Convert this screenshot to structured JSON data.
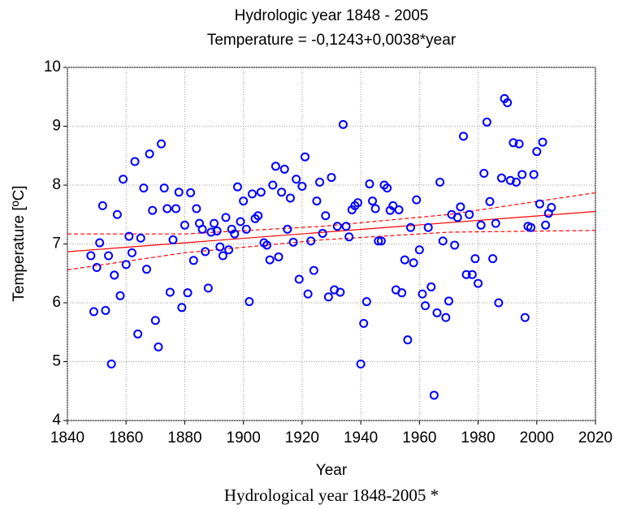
{
  "chart_data": {
    "type": "scatter",
    "title": "Hydrologic year 1848 - 2005",
    "subtitle": "Temperature = -0,1243+0,0038*year",
    "x_label": "Year",
    "y_label": "Temperature [ºC]",
    "footer": "Hydrological year 1848-2005 *",
    "xlim": [
      1840,
      2020
    ],
    "ylim": [
      4,
      10
    ],
    "xticks": [
      1840,
      1860,
      1880,
      1900,
      1920,
      1940,
      1960,
      1980,
      2000,
      2020
    ],
    "yticks": [
      4,
      5,
      6,
      7,
      8,
      9,
      10
    ],
    "grid": true,
    "series": [
      {
        "color": "#0000ff",
        "x": [
          1848,
          1849,
          1850,
          1851,
          1852,
          1853,
          1854,
          1855,
          1856,
          1857,
          1858,
          1859,
          1860,
          1861,
          1862,
          1863,
          1864,
          1865,
          1866,
          1867,
          1868,
          1869,
          1870,
          1871,
          1872,
          1873,
          1874,
          1875,
          1876,
          1877,
          1878,
          1879,
          1880,
          1881,
          1882,
          1883,
          1884,
          1885,
          1886,
          1887,
          1888,
          1889,
          1890,
          1891,
          1892,
          1893,
          1894,
          1895,
          1896,
          1897,
          1898,
          1899,
          1900,
          1901,
          1902,
          1903,
          1904,
          1905,
          1906,
          1907,
          1908,
          1909,
          1910,
          1911,
          1912,
          1913,
          1914,
          1915,
          1916,
          1917,
          1918,
          1919,
          1920,
          1921,
          1922,
          1923,
          1924,
          1925,
          1926,
          1927,
          1928,
          1929,
          1930,
          1931,
          1932,
          1933,
          1934,
          1935,
          1936,
          1937,
          1938,
          1939,
          1940,
          1941,
          1942,
          1943,
          1944,
          1945,
          1946,
          1947,
          1948,
          1949,
          1950,
          1951,
          1952,
          1953,
          1954,
          1955,
          1956,
          1957,
          1958,
          1959,
          1960,
          1961,
          1962,
          1963,
          1964,
          1965,
          1966,
          1967,
          1968,
          1969,
          1970,
          1971,
          1972,
          1973,
          1974,
          1975,
          1976,
          1977,
          1978,
          1979,
          1980,
          1981,
          1982,
          1983,
          1984,
          1985,
          1986,
          1987,
          1988,
          1989,
          1990,
          1991,
          1992,
          1993,
          1994,
          1995,
          1996,
          1997,
          1998,
          1999,
          2000,
          2001,
          2002,
          2003,
          2004,
          2005
        ],
        "values": [
          6.8,
          5.85,
          6.6,
          7.02,
          7.65,
          5.87,
          6.8,
          4.96,
          6.47,
          7.5,
          6.12,
          8.1,
          6.65,
          7.13,
          6.85,
          8.4,
          5.47,
          7.1,
          7.95,
          6.57,
          8.53,
          7.57,
          5.7,
          5.25,
          8.7,
          7.95,
          7.6,
          6.18,
          7.07,
          7.6,
          7.88,
          5.92,
          7.32,
          6.17,
          7.87,
          6.72,
          7.6,
          7.35,
          7.25,
          6.87,
          6.25,
          7.2,
          7.35,
          7.22,
          6.95,
          6.8,
          7.45,
          6.9,
          7.25,
          7.17,
          7.97,
          7.38,
          7.73,
          7.25,
          6.02,
          7.85,
          7.43,
          7.48,
          7.88,
          7.02,
          6.98,
          6.73,
          8.0,
          8.32,
          6.78,
          7.88,
          8.27,
          7.25,
          7.78,
          7.03,
          8.1,
          6.4,
          7.98,
          8.48,
          6.15,
          7.05,
          6.55,
          7.73,
          8.05,
          7.18,
          7.48,
          6.1,
          8.13,
          6.22,
          7.3,
          6.18,
          9.03,
          7.3,
          7.12,
          7.58,
          7.65,
          7.7,
          4.96,
          5.65,
          6.02,
          8.02,
          7.73,
          7.6,
          7.05,
          7.05,
          8.0,
          7.95,
          7.57,
          7.65,
          6.22,
          7.58,
          6.17,
          6.73,
          5.37,
          7.28,
          6.68,
          7.75,
          6.9,
          6.15,
          5.95,
          7.28,
          6.27,
          4.43,
          5.83,
          8.05,
          7.05,
          5.75,
          6.03,
          7.5,
          6.98,
          7.45,
          7.63,
          8.83,
          6.48,
          7.5,
          6.48,
          6.75,
          6.33,
          7.32,
          8.2,
          9.07,
          7.72,
          6.75,
          7.35,
          6.0,
          8.12,
          9.47,
          9.4,
          8.08,
          8.72,
          8.05,
          8.7,
          8.18,
          5.75,
          7.3,
          7.28,
          8.18,
          8.57,
          7.68,
          8.73,
          7.32,
          7.52,
          7.62
        ]
      }
    ],
    "lines": [
      {
        "style": "solid",
        "color": "#ff0000",
        "x": [
          1840,
          2020
        ],
        "values": [
          6.867,
          7.552
        ]
      },
      {
        "style": "dashed",
        "color": "#ff0000",
        "x": [
          1840,
          1880,
          1927,
          1970,
          2020
        ],
        "values": [
          7.17,
          7.17,
          7.3,
          7.5,
          7.87
        ]
      },
      {
        "style": "dashed",
        "color": "#ff0000",
        "x": [
          1840,
          1880,
          1927,
          1970,
          2020
        ],
        "values": [
          6.56,
          6.85,
          7.07,
          7.2,
          7.23
        ]
      }
    ]
  }
}
